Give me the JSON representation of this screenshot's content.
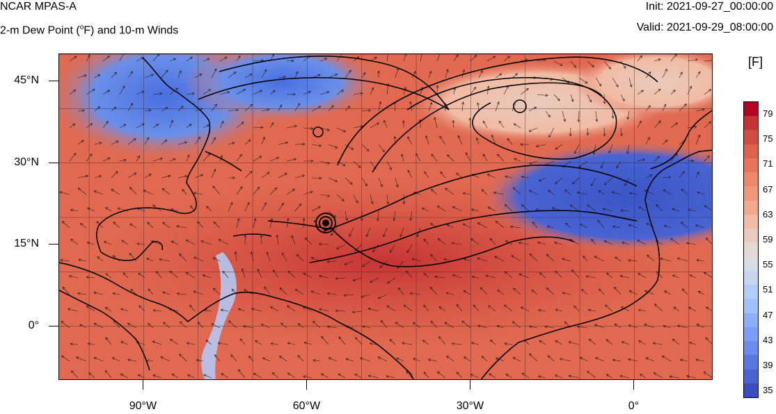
{
  "header": {
    "title": "NCAR MPAS-A",
    "subtitle_pre": "2-m Dew Point (",
    "subtitle_sup": "o",
    "subtitle_post": "F) and 10-m Winds",
    "init": "Init: 2021-09-27_00:00:00",
    "valid": "Valid: 2021-09-29_08:00:00"
  },
  "map": {
    "lat_labels": [
      "45°N",
      "30°N",
      "15°N",
      "0°"
    ],
    "lon_labels": [
      "90°W",
      "60°W",
      "30°W",
      "0°"
    ],
    "lat_values": [
      45,
      30,
      15,
      0
    ],
    "lon_values": [
      -90,
      -60,
      -30,
      0
    ],
    "extent": {
      "lon_min": -105.5,
      "lon_max": 14.5,
      "lat_min": -10,
      "lat_max": 50
    },
    "hurricane_center": {
      "lon": -57,
      "lat": 19
    }
  },
  "colorbar": {
    "unit": "[F]",
    "tick_labels": [
      "79",
      "75",
      "71",
      "67",
      "63",
      "59",
      "55",
      "51",
      "47",
      "43",
      "39",
      "35"
    ],
    "colors": [
      "#b40426",
      "#c53334",
      "#d24b40",
      "#de604d",
      "#e7745b",
      "#ee8669",
      "#f2987a",
      "#f4a98e",
      "#f2bba3",
      "#e9cbbd",
      "#e2d9d5",
      "#d8dce4",
      "#c6d6f1",
      "#b3cdfb",
      "#a1c0ff",
      "#8caefd",
      "#7b9ff9",
      "#6a8bef",
      "#5977e3",
      "#4a63d3",
      "#3b4cc0"
    ]
  }
}
